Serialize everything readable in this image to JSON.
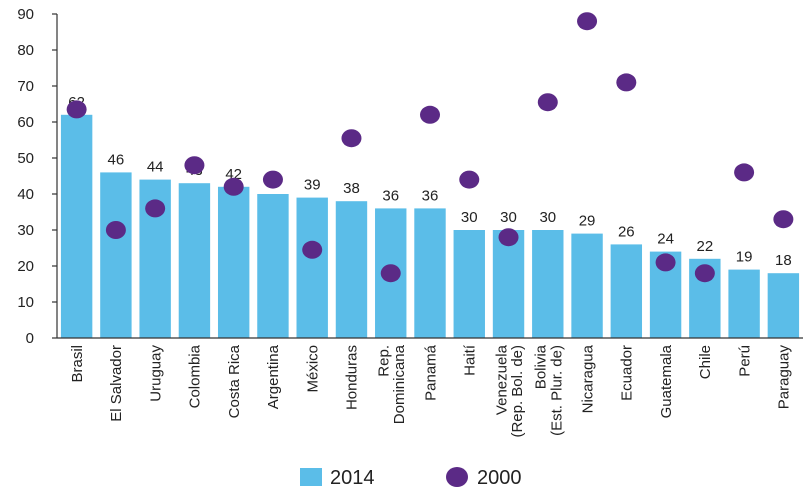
{
  "chart_data": {
    "type": "bar",
    "categories": [
      "Brasil",
      "El Salvador",
      "Uruguay",
      "Colombia",
      "Costa Rica",
      "Argentina",
      "México",
      "Honduras",
      "Rep.\nDominicana",
      "Panamá",
      "Haití",
      "Venezuela\n(Rep. Bol. de)",
      "Bolivia\n(Est. Plur. de)",
      "Nicaragua",
      "Ecuador",
      "Guatemala",
      "Chile",
      "Perú",
      "Paraguay"
    ],
    "series": [
      {
        "name": "2014",
        "type": "bar",
        "color": "#5bbde8",
        "values": [
          62,
          46,
          44,
          43,
          42,
          40,
          39,
          38,
          36,
          36,
          30,
          30,
          30,
          29,
          26,
          24,
          22,
          19,
          18
        ]
      },
      {
        "name": "2000",
        "type": "scatter",
        "color": "#5b2a86",
        "values": [
          63.5,
          30,
          36,
          48,
          42,
          44,
          24.5,
          55.5,
          18,
          62,
          44,
          28,
          65.5,
          88,
          71,
          21,
          18,
          46,
          33
        ]
      }
    ],
    "ylim": [
      0,
      90
    ],
    "yticks": [
      0,
      10,
      20,
      30,
      40,
      50,
      60,
      70,
      80,
      90
    ],
    "grid": false,
    "legend": "bottom"
  }
}
